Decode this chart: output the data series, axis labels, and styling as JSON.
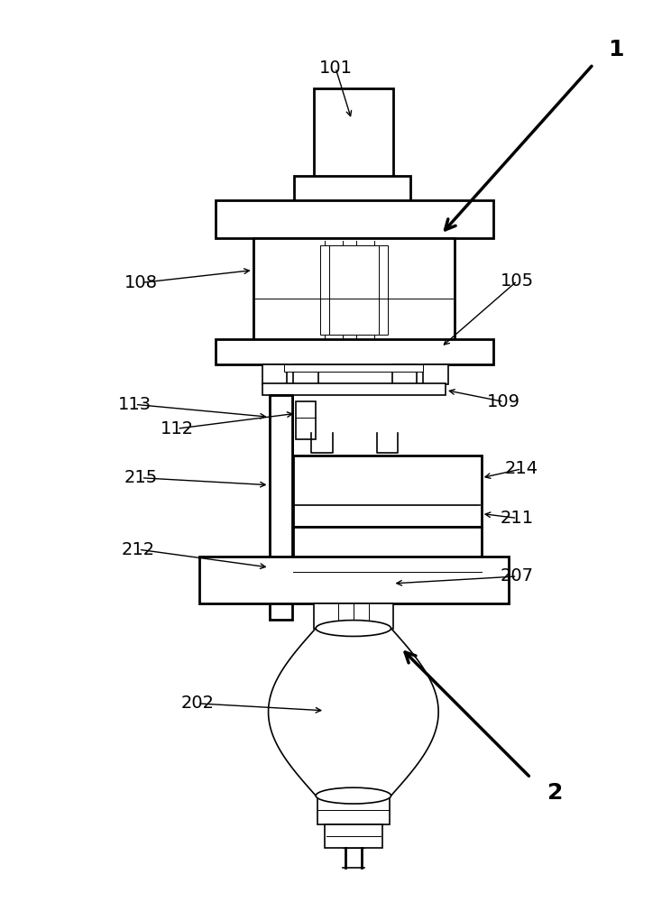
{
  "bg_color": "#ffffff",
  "line_color": "#000000",
  "label_color": "#000000",
  "fig_width": 7.44,
  "fig_height": 10.0,
  "dpi": 100
}
